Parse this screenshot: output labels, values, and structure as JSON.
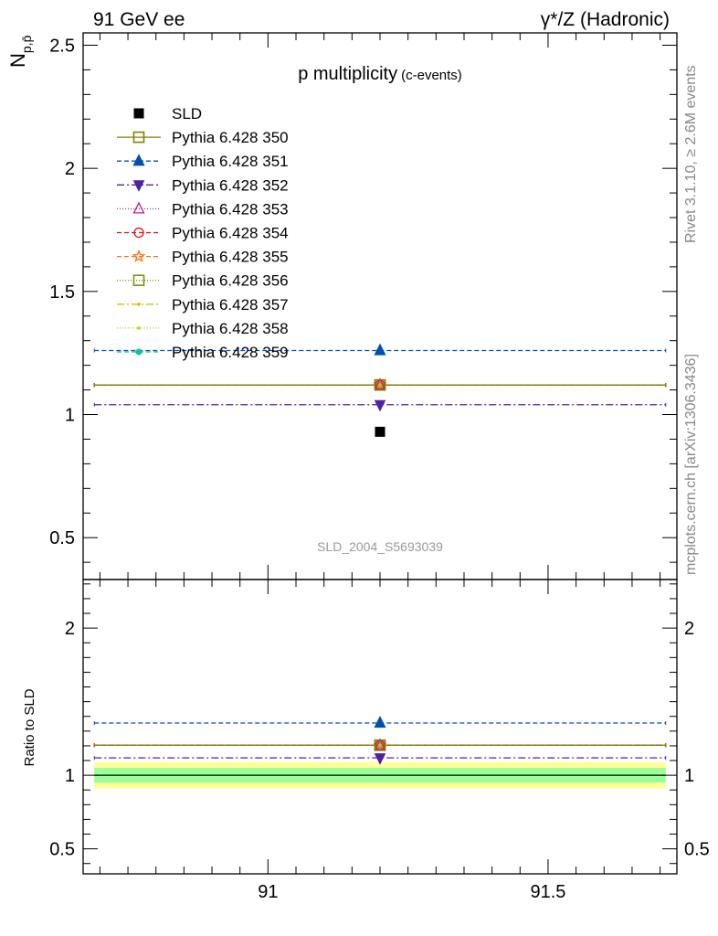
{
  "header": {
    "left": "91 GeV ee",
    "right": "γ*/Z (Hadronic)"
  },
  "side_labels": {
    "rivet": "Rivet 3.1.10, ≥ 2.6M events",
    "mcplots": "mcplots.cern.ch [arXiv:1306.3436]"
  },
  "watermark": "SLD_2004_S5693039",
  "chart_data": [
    {
      "type": "scatter",
      "title": "p multiplicity",
      "subtitle": "(c-events)",
      "ylabel": "N",
      "ylabel_sub": "p,p̄",
      "xlim": [
        90.67,
        91.73
      ],
      "ylim": [
        0.33,
        2.55
      ],
      "x_ticks": [
        91,
        91.5
      ],
      "x_tick_labels": [
        "91",
        "91.5"
      ],
      "y_ticks": [
        0.5,
        1,
        1.5,
        2,
        2.5
      ],
      "y_tick_labels": [
        "0.5",
        "1",
        "1.5",
        "2",
        "2.5"
      ],
      "x_range": [
        90.69,
        91.71
      ],
      "x_point": 91.2,
      "legend_position": "top-left",
      "data": {
        "name": "SLD",
        "x": 91.2,
        "y": 0.93,
        "color": "#000000",
        "marker": "filled-square"
      },
      "series": [
        {
          "name": "Pythia 6.428 350",
          "value": 1.12,
          "color": "#808000",
          "dash": "solid",
          "marker": "open-square"
        },
        {
          "name": "Pythia 6.428 351",
          "value": 1.26,
          "color": "#0050b0",
          "dash": "5,3",
          "marker": "filled-triangle-up"
        },
        {
          "name": "Pythia 6.428 352",
          "value": 1.04,
          "color": "#5020a0",
          "dash": "8,3,2,3",
          "marker": "filled-triangle-down"
        },
        {
          "name": "Pythia 6.428 353",
          "value": 1.12,
          "color": "#c02080",
          "dash": "1,2",
          "marker": "open-triangle-up"
        },
        {
          "name": "Pythia 6.428 354",
          "value": 1.12,
          "color": "#e01010",
          "dash": "5,3",
          "marker": "open-circle"
        },
        {
          "name": "Pythia 6.428 355",
          "value": 1.12,
          "color": "#ff7010",
          "dash": "5,3",
          "marker": "open-star"
        },
        {
          "name": "Pythia 6.428 356",
          "value": 1.12,
          "color": "#809010",
          "dash": "1,2",
          "marker": "open-square"
        },
        {
          "name": "Pythia 6.428 357",
          "value": 1.12,
          "color": "#d0c000",
          "dash": "8,3,2,3",
          "marker": "small-dot"
        },
        {
          "name": "Pythia 6.428 358",
          "value": 1.12,
          "color": "#b0d020",
          "dash": "1,2",
          "marker": "small-dot"
        },
        {
          "name": "Pythia 6.428 359",
          "value": 1.12,
          "color": "#10c0a0",
          "dash": "5,3",
          "marker": "filled-circle"
        }
      ]
    },
    {
      "type": "scatter",
      "title": "",
      "ylabel": "Ratio to SLD",
      "xlim": [
        90.67,
        91.73
      ],
      "ylim": [
        0.33,
        2.33
      ],
      "x_ticks": [
        91,
        91.5
      ],
      "x_tick_labels": [
        "91",
        "91.5"
      ],
      "y_ticks": [
        0.5,
        1,
        2
      ],
      "y_tick_labels": [
        "0.5",
        "1",
        "2"
      ],
      "band_outer": [
        0.91,
        1.09
      ],
      "band_inner": [
        0.95,
        1.05
      ],
      "band_outer_color": "#ffff99",
      "band_inner_color": "#99ff99",
      "ratios": [
        1.204,
        1.355,
        1.118,
        1.204,
        1.204,
        1.204,
        1.204,
        1.204,
        1.204,
        1.204
      ]
    }
  ]
}
